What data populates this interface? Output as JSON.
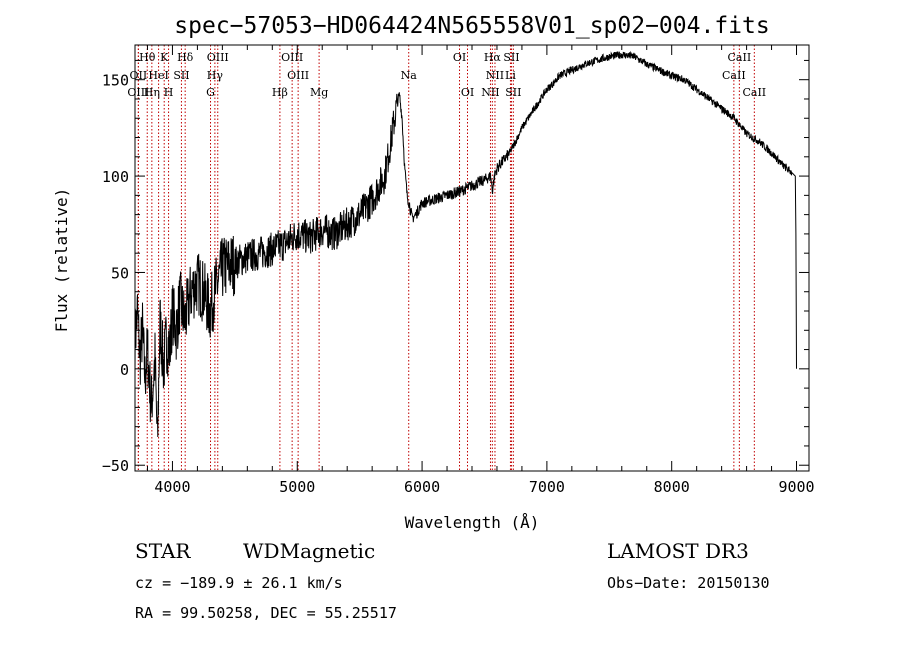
{
  "chart_data": {
    "type": "line",
    "title": "spec−57053−HD064424N565558V01_sp02−004.fits",
    "xlabel": "Wavelength (Å)",
    "ylabel": "Flux (relative)",
    "xlim": [
      3700,
      9100
    ],
    "ylim": [
      -53,
      168
    ],
    "x_ticks": [
      4000,
      5000,
      6000,
      7000,
      8000,
      9000
    ],
    "y_ticks": [
      -50,
      0,
      50,
      100,
      150
    ],
    "y_tick_labels": [
      "−50",
      "0",
      "50",
      "100",
      "150"
    ],
    "series": [
      {
        "name": "spectrum",
        "x": [
          3700,
          3720,
          3740,
          3760,
          3780,
          3800,
          3830,
          3860,
          3880,
          3900,
          3930,
          3950,
          3980,
          4000,
          4030,
          4060,
          4100,
          4150,
          4200,
          4250,
          4300,
          4350,
          4400,
          4500,
          4600,
          4700,
          4800,
          4900,
          5000,
          5100,
          5200,
          5300,
          5400,
          5500,
          5600,
          5700,
          5750,
          5780,
          5800,
          5820,
          5840,
          5860,
          5880,
          5900,
          5920,
          5950,
          6000,
          6100,
          6200,
          6300,
          6400,
          6500,
          6550,
          6563,
          6580,
          6600,
          6650,
          6700,
          6750,
          6800,
          6850,
          6900,
          6950,
          7000,
          7050,
          7100,
          7200,
          7300,
          7400,
          7500,
          7600,
          7700,
          7800,
          7900,
          8000,
          8100,
          8200,
          8300,
          8400,
          8500,
          8600,
          8700,
          8800,
          8900,
          8960,
          8990,
          8995,
          9000
        ],
        "y": [
          15,
          30,
          5,
          20,
          -5,
          10,
          -20,
          5,
          -40,
          25,
          0,
          15,
          10,
          30,
          20,
          35,
          25,
          40,
          45,
          40,
          30,
          42,
          52,
          55,
          58,
          60,
          62,
          65,
          70,
          68,
          72,
          70,
          75,
          80,
          88,
          100,
          118,
          130,
          138,
          142,
          130,
          105,
          90,
          85,
          78,
          80,
          86,
          88,
          90,
          92,
          95,
          98,
          100,
          92,
          100,
          104,
          108,
          112,
          118,
          125,
          130,
          135,
          140,
          145,
          148,
          152,
          155,
          158,
          160,
          162,
          163,
          162,
          158,
          155,
          152,
          150,
          145,
          140,
          135,
          130,
          122,
          118,
          112,
          105,
          102,
          100,
          70,
          0
        ]
      }
    ],
    "lines": [
      {
        "name": "Hθ",
        "wavelength": 3798,
        "row": 0
      },
      {
        "name": "K",
        "wavelength": 3934,
        "row": 0
      },
      {
        "name": "Hδ",
        "wavelength": 4102,
        "row": 0
      },
      {
        "name": "OIII",
        "wavelength": 4363,
        "row": 0
      },
      {
        "name": "OIII",
        "wavelength": 4959,
        "row": 0
      },
      {
        "name": "OI",
        "wavelength": 6300,
        "row": 0
      },
      {
        "name": "Hα",
        "wavelength": 6563,
        "row": 0
      },
      {
        "name": "SII",
        "wavelength": 6716,
        "row": 0
      },
      {
        "name": "CaII",
        "wavelength": 8542,
        "row": 0
      },
      {
        "name": "OII",
        "wavelength": 3727,
        "row": 1
      },
      {
        "name": "HeI",
        "wavelength": 3889,
        "row": 1
      },
      {
        "name": "SII",
        "wavelength": 4072,
        "row": 1
      },
      {
        "name": "Hγ",
        "wavelength": 4340,
        "row": 1
      },
      {
        "name": "OIII",
        "wavelength": 5007,
        "row": 1
      },
      {
        "name": "Na",
        "wavelength": 5893,
        "row": 1
      },
      {
        "name": "NII",
        "wavelength": 6584,
        "row": 1
      },
      {
        "name": "Li",
        "wavelength": 6708,
        "row": 1
      },
      {
        "name": "CaII",
        "wavelength": 8498,
        "row": 1
      },
      {
        "name": "OIII",
        "wavelength": 3727,
        "row": 2
      },
      {
        "name": "Hη",
        "wavelength": 3835,
        "row": 2
      },
      {
        "name": "H",
        "wavelength": 3969,
        "row": 2
      },
      {
        "name": "G",
        "wavelength": 4305,
        "row": 2
      },
      {
        "name": "Hβ",
        "wavelength": 4861,
        "row": 2
      },
      {
        "name": "Mg",
        "wavelength": 5175,
        "row": 2
      },
      {
        "name": "OI",
        "wavelength": 6364,
        "row": 2
      },
      {
        "name": "NII",
        "wavelength": 6548,
        "row": 2
      },
      {
        "name": "SII",
        "wavelength": 6731,
        "row": 2
      },
      {
        "name": "CaII",
        "wavelength": 8662,
        "row": 2
      }
    ]
  },
  "info": {
    "object_class": "STAR",
    "subclass": "WDMagnetic",
    "survey": "LAMOST DR3",
    "cz": "cz = −189.9 ± 26.1 km/s",
    "obs_date": "Obs−Date: 20150130",
    "radec": "RA =  99.50258, DEC =  55.25517"
  }
}
